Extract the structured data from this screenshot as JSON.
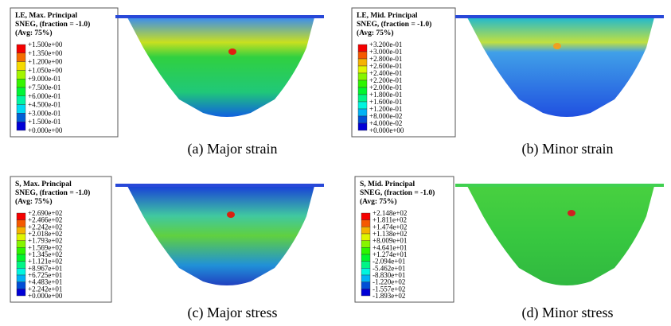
{
  "panels": [
    {
      "legend": {
        "header": [
          "LE, Max. Principal",
          "SNEG, (fraction = -1.0)",
          "(Avg: 75%)"
        ],
        "labels": [
          "+1.500e+00",
          "+1.350e+00",
          "+1.200e+00",
          "+1.050e+00",
          "+9.000e-01",
          "+7.500e-01",
          "+6.000e-01",
          "+4.500e-01",
          "+3.000e-01",
          "+1.500e-01",
          "+0.000e+00"
        ]
      },
      "caption": "(a) Major strain"
    },
    {
      "legend": {
        "header": [
          "LE, Mid. Principal",
          "SNEG, (fraction = -1.0)",
          "(Avg: 75%)"
        ],
        "labels": [
          "+3.200e-01",
          "+3.000e-01",
          "+2.800e-01",
          "+2.600e-01",
          "+2.400e-01",
          "+2.200e-01",
          "+2.000e-01",
          "+1.800e-01",
          "+1.600e-01",
          "+1.200e-01",
          "+8.000e-02",
          "+4.000e-02",
          "+0.000e+00"
        ]
      },
      "caption": "(b) Minor strain"
    },
    {
      "legend": {
        "header": [
          "S, Max. Principal",
          "SNEG, (fraction = -1.0)",
          "(Avg: 75%)"
        ],
        "labels": [
          "+2.690e+02",
          "+2.466e+02",
          "+2.242e+02",
          "+2.018e+02",
          "+1.793e+02",
          "+1.569e+02",
          "+1.345e+02",
          "+1.121e+02",
          "+8.967e+01",
          "+6.725e+01",
          "+4.483e+01",
          "+2.242e+01",
          "+0.000e+00"
        ]
      },
      "caption": "(c) Major stress"
    },
    {
      "legend": {
        "header": [
          "S, Mid. Principal",
          "SNEG, (fraction = -1.0)",
          "(Avg: 75%)"
        ],
        "labels": [
          "+2.148e+02",
          "+1.811e+02",
          "+1.474e+02",
          "+1.138e+02",
          "+8.009e+01",
          "+4.641e+01",
          "+1.274e+01",
          "-2.094e+01",
          "-5.462e+01",
          "-8.830e+01",
          "-1.220e+02",
          "-1.557e+02",
          "-1.893e+02"
        ]
      },
      "caption": "(d) Minor stress"
    }
  ]
}
